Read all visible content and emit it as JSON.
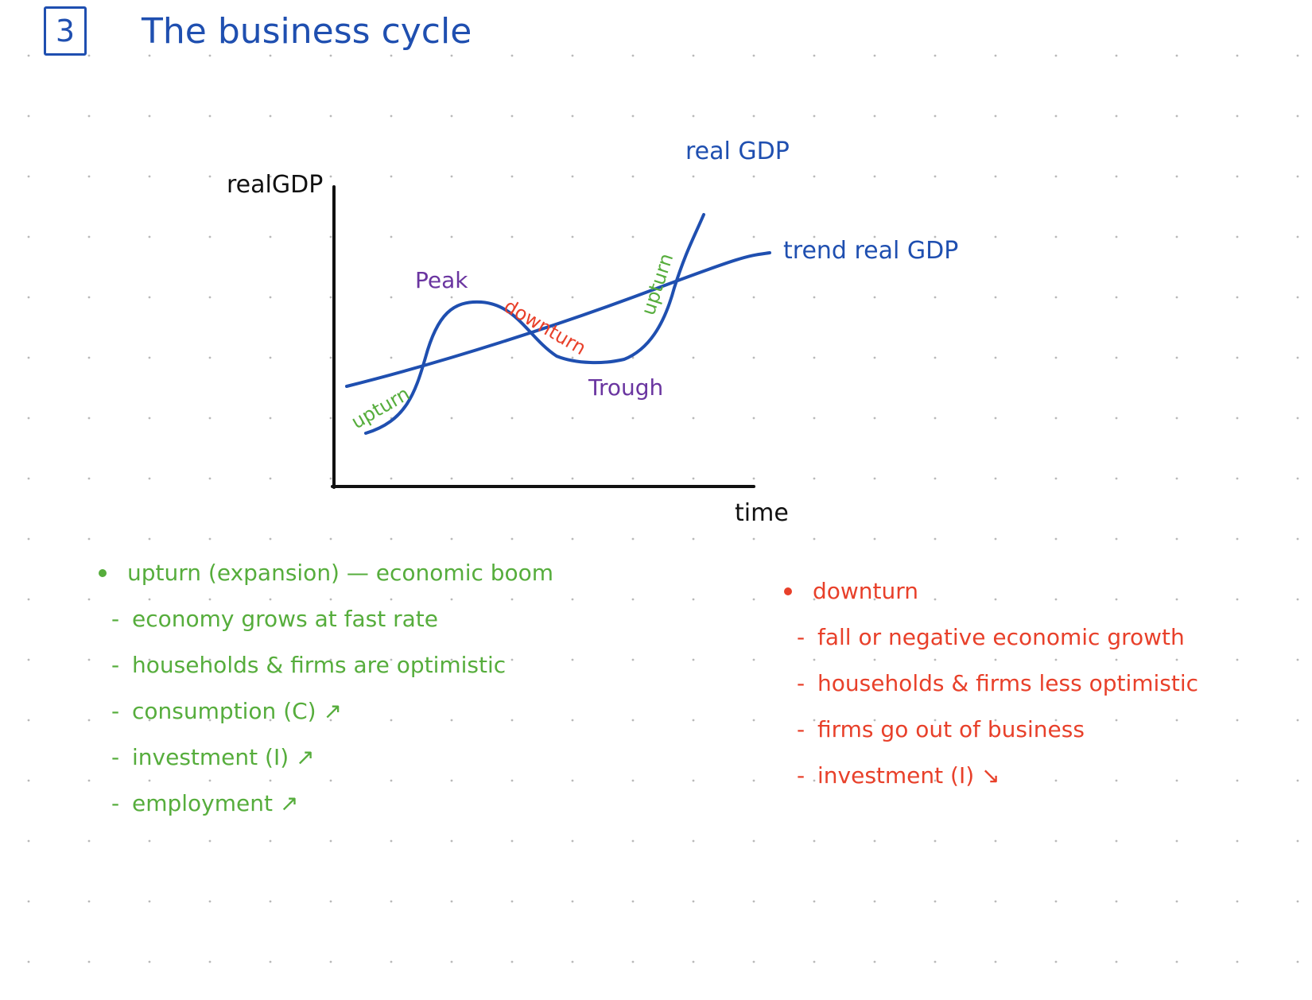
{
  "header": {
    "section_number": "3",
    "title": "The business cycle"
  },
  "diagram": {
    "y_axis_label": "realGDP",
    "x_axis_label": "time",
    "curve_label": "real GDP",
    "trend_label": "trend real GDP",
    "phase_labels": {
      "peak": "Peak",
      "trough": "Trough",
      "downturn": "downturn",
      "upturn_left": "upturn",
      "upturn_right": "upturn"
    }
  },
  "notes": {
    "upturn": {
      "heading": "upturn (expansion) — economic boom",
      "items": [
        "economy grows at fast rate",
        "households & firms are optimistic",
        "consumption (C) ↗",
        "investment (I) ↗",
        "employment ↗"
      ]
    },
    "downturn": {
      "heading": "downturn",
      "items": [
        "fall or negative economic growth",
        "households & firms less optimistic",
        "firms go out of business",
        "investment (I) ↘"
      ]
    }
  },
  "colors": {
    "ink_blue": "#1f4fb0",
    "ink_green": "#56ad3c",
    "ink_red": "#e8402a",
    "ink_purple": "#6a35a0",
    "ink_black": "#111111"
  }
}
